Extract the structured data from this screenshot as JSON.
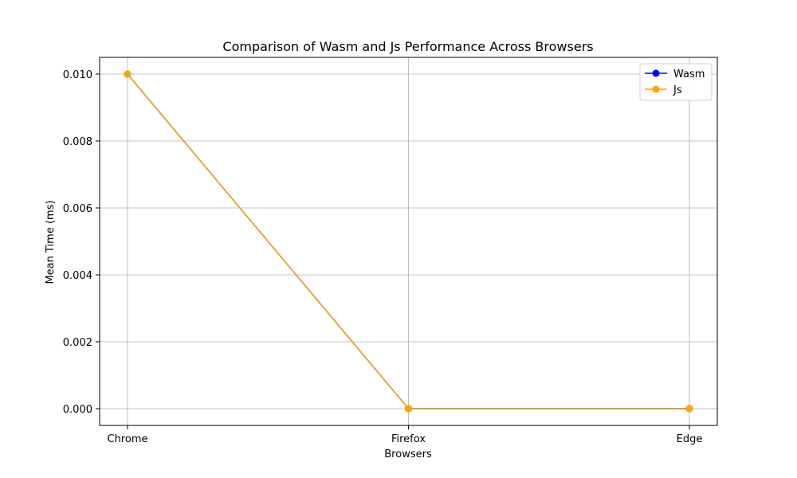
{
  "chart_data": {
    "type": "line",
    "title": "Comparison of Wasm and Js Performance Across Browsers",
    "xlabel": "Browsers",
    "ylabel": "Mean Time (ms)",
    "categories": [
      "Chrome",
      "Firefox",
      "Edge"
    ],
    "yticks": [
      "0.000",
      "0.002",
      "0.004",
      "0.006",
      "0.008",
      "0.010"
    ],
    "ytick_values": [
      0.0,
      0.002,
      0.004,
      0.006,
      0.008,
      0.01
    ],
    "ylim": [
      -0.0005,
      0.0105
    ],
    "grid": true,
    "legend_position": "top-right",
    "series": [
      {
        "name": "Wasm",
        "color": "#0000ff",
        "values": [
          0.01,
          0.0,
          0.0
        ]
      },
      {
        "name": "Js",
        "color": "#ffa500",
        "values": [
          0.01,
          0.0,
          0.0
        ]
      }
    ]
  }
}
